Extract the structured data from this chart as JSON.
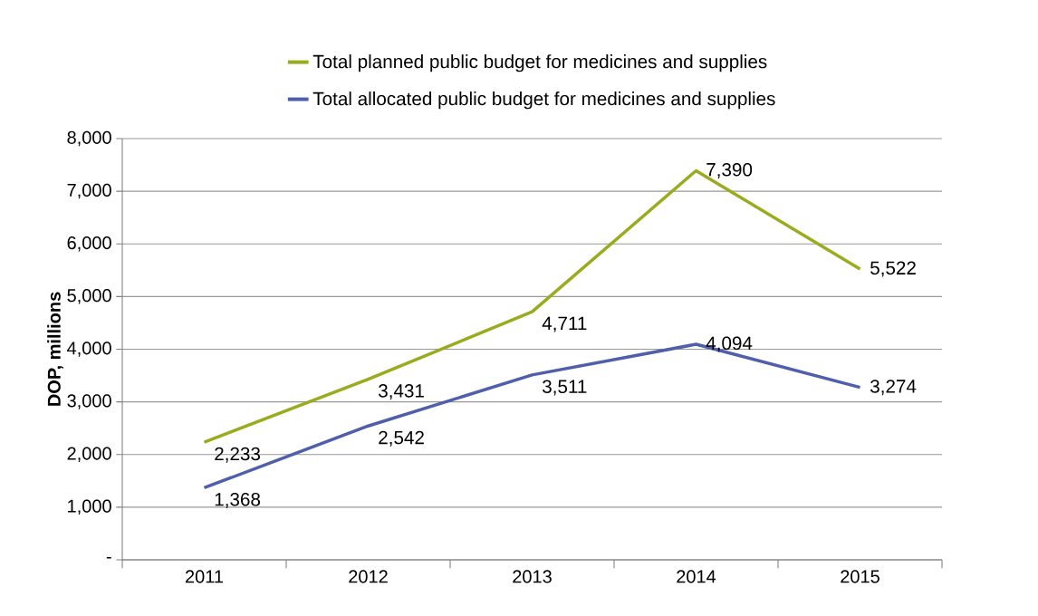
{
  "chart_data": {
    "type": "line",
    "ylabel": "DOP, millions",
    "categories": [
      "2011",
      "2012",
      "2013",
      "2014",
      "2015"
    ],
    "series": [
      {
        "name": "Total planned public budget for medicines and supplies",
        "color": "#9bab1e",
        "values": [
          2233,
          3431,
          4711,
          7390,
          5522
        ],
        "value_labels": [
          "2,233",
          "3,431",
          "4,711",
          "7,390",
          "5,522"
        ]
      },
      {
        "name": "Total allocated public budget for medicines and supplies",
        "color": "#4f5fab",
        "values": [
          1368,
          2542,
          3511,
          4094,
          3274
        ],
        "value_labels": [
          "1,368",
          "2,542",
          "3,511",
          "4,094",
          "3,274"
        ]
      }
    ],
    "ylim": [
      0,
      8000
    ],
    "yticks": [
      {
        "value": 0,
        "label": "-"
      },
      {
        "value": 1000,
        "label": "1,000"
      },
      {
        "value": 2000,
        "label": "2,000"
      },
      {
        "value": 3000,
        "label": "3,000"
      },
      {
        "value": 4000,
        "label": "4,000"
      },
      {
        "value": 5000,
        "label": "5,000"
      },
      {
        "value": 6000,
        "label": "6,000"
      },
      {
        "value": 7000,
        "label": "7,000"
      },
      {
        "value": 8000,
        "label": "8,000"
      }
    ],
    "grid": "y",
    "legend": "top",
    "marker": "none",
    "line_style": "solid"
  }
}
